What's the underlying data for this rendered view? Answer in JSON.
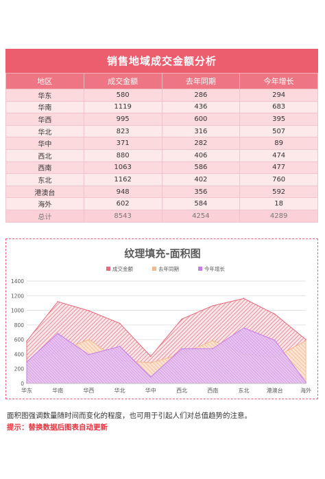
{
  "table": {
    "title": "销售地域成交金额分析",
    "headers": [
      "地区",
      "成交金额",
      "去年同期",
      "今年增长"
    ],
    "rows": [
      [
        "华东",
        "580",
        "286",
        "294"
      ],
      [
        "华南",
        "1119",
        "436",
        "683"
      ],
      [
        "华西",
        "995",
        "600",
        "395"
      ],
      [
        "华北",
        "823",
        "316",
        "507"
      ],
      [
        "华中",
        "371",
        "282",
        "89"
      ],
      [
        "西北",
        "880",
        "406",
        "474"
      ],
      [
        "西南",
        "1063",
        "586",
        "477"
      ],
      [
        "东北",
        "1162",
        "402",
        "760"
      ],
      [
        "港澳台",
        "948",
        "356",
        "592"
      ],
      [
        "海外",
        "602",
        "584",
        "18"
      ]
    ],
    "total": [
      "总计",
      "8543",
      "4254",
      "4289"
    ]
  },
  "chart_data": {
    "type": "area",
    "title": "纹理填充-面积图",
    "categories": [
      "华东",
      "华南",
      "华西",
      "华北",
      "华中",
      "西北",
      "西南",
      "东北",
      "港澳台",
      "海外"
    ],
    "series": [
      {
        "name": "成交金额",
        "values": [
          580,
          1119,
          995,
          823,
          371,
          880,
          1063,
          1162,
          948,
          602
        ],
        "color": "#e8697a"
      },
      {
        "name": "去年同期",
        "values": [
          286,
          436,
          600,
          316,
          282,
          406,
          586,
          402,
          356,
          584
        ],
        "color": "#f5b88c"
      },
      {
        "name": "今年增长",
        "values": [
          294,
          683,
          395,
          507,
          89,
          474,
          477,
          760,
          592,
          18
        ],
        "color": "#c77ee8"
      }
    ],
    "ylim": [
      0,
      1400
    ],
    "yticks": [
      "0",
      "200",
      "400",
      "600",
      "800",
      "1000",
      "1200",
      "1400"
    ],
    "grid": true,
    "legend_position": "top"
  },
  "notes": {
    "description": "面积图强调数量随时间而变化的程度，也可用于引起人们对总值趋势的注意。",
    "tip": "提示：替换数据后图表自动更新"
  }
}
